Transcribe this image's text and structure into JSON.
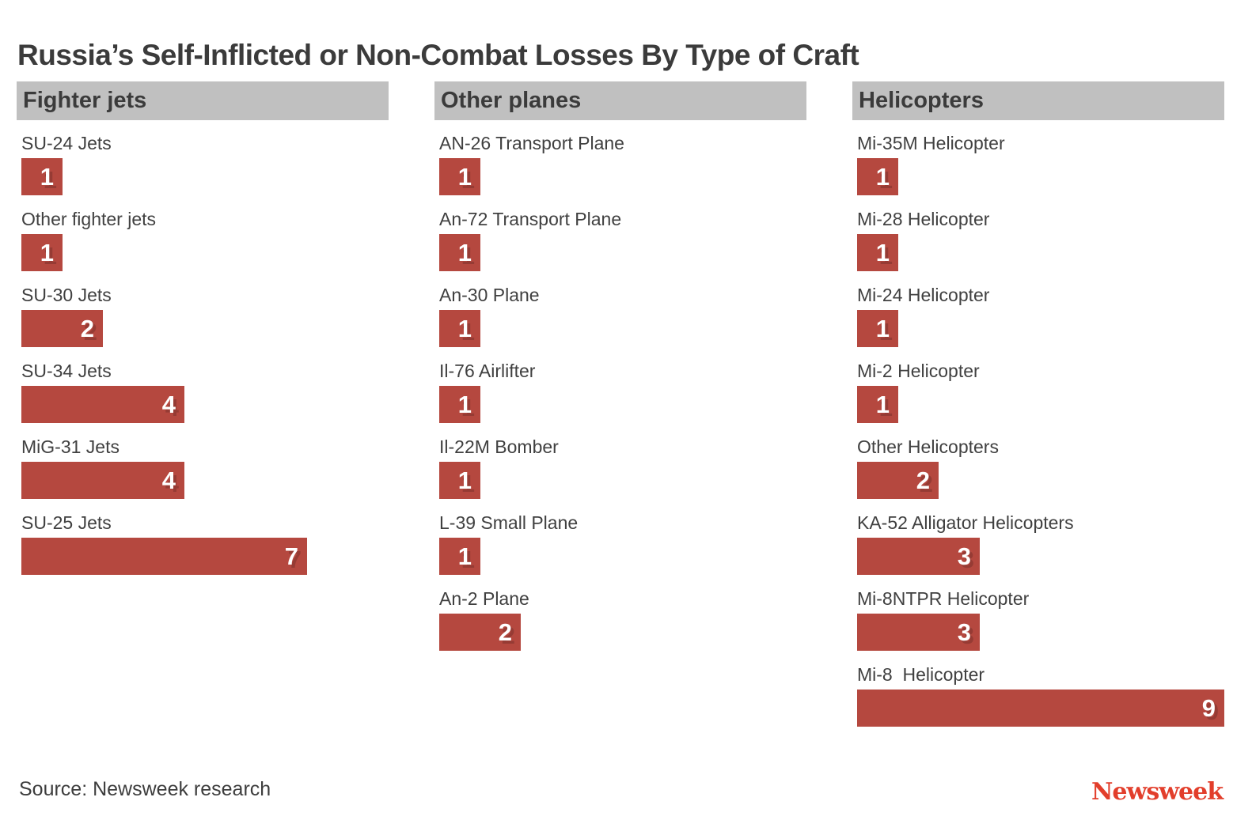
{
  "title": "Russia’s Self-Inflicted or Non-Combat Losses By Type of Craft",
  "footer": {
    "source": "Source: Newsweek research",
    "brand": "Newsweek"
  },
  "colors": {
    "bar": "#b5483f",
    "header_background": "#c0c0c0",
    "title_text": "#3b3b3b",
    "label_text": "#404040",
    "bar_value_text": "#ffffff",
    "brand_red": "#e23e2b"
  },
  "chart_data": {
    "type": "bar",
    "orientation": "horizontal",
    "title": "Russia’s Self-Inflicted or Non-Combat Losses By Type of Craft",
    "value_axis_max": 9,
    "grid": false,
    "legend": false,
    "groups": [
      {
        "label": "Fighter jets",
        "items": [
          {
            "name": "SU-24 Jets",
            "value": 1
          },
          {
            "name": "Other fighter jets",
            "value": 1
          },
          {
            "name": "SU-30 Jets",
            "value": 2
          },
          {
            "name": "SU-34 Jets",
            "value": 4
          },
          {
            "name": "MiG-31 Jets",
            "value": 4
          },
          {
            "name": "SU-25 Jets",
            "value": 7
          }
        ]
      },
      {
        "label": "Other planes",
        "items": [
          {
            "name": "AN-26 Transport Plane",
            "value": 1
          },
          {
            "name": "An-72 Transport Plane",
            "value": 1
          },
          {
            "name": "An-30 Plane",
            "value": 1
          },
          {
            "name": "Il-76 Airlifter",
            "value": 1
          },
          {
            "name": "Il-22M Bomber",
            "value": 1
          },
          {
            "name": "L-39 Small Plane",
            "value": 1
          },
          {
            "name": "An-2 Plane",
            "value": 2
          }
        ]
      },
      {
        "label": "Helicopters",
        "items": [
          {
            "name": "Mi-35M Helicopter",
            "value": 1
          },
          {
            "name": "Mi-28 Helicopter",
            "value": 1
          },
          {
            "name": "Mi-24 Helicopter",
            "value": 1
          },
          {
            "name": "Mi-2 Helicopter",
            "value": 1
          },
          {
            "name": "Other Helicopters",
            "value": 2
          },
          {
            "name": "KA-52 Alligator Helicopters",
            "value": 3
          },
          {
            "name": "Mi-8NTPR Helicopter",
            "value": 3
          },
          {
            "name": "Mi-8  Helicopter",
            "value": 9
          }
        ]
      }
    ]
  }
}
